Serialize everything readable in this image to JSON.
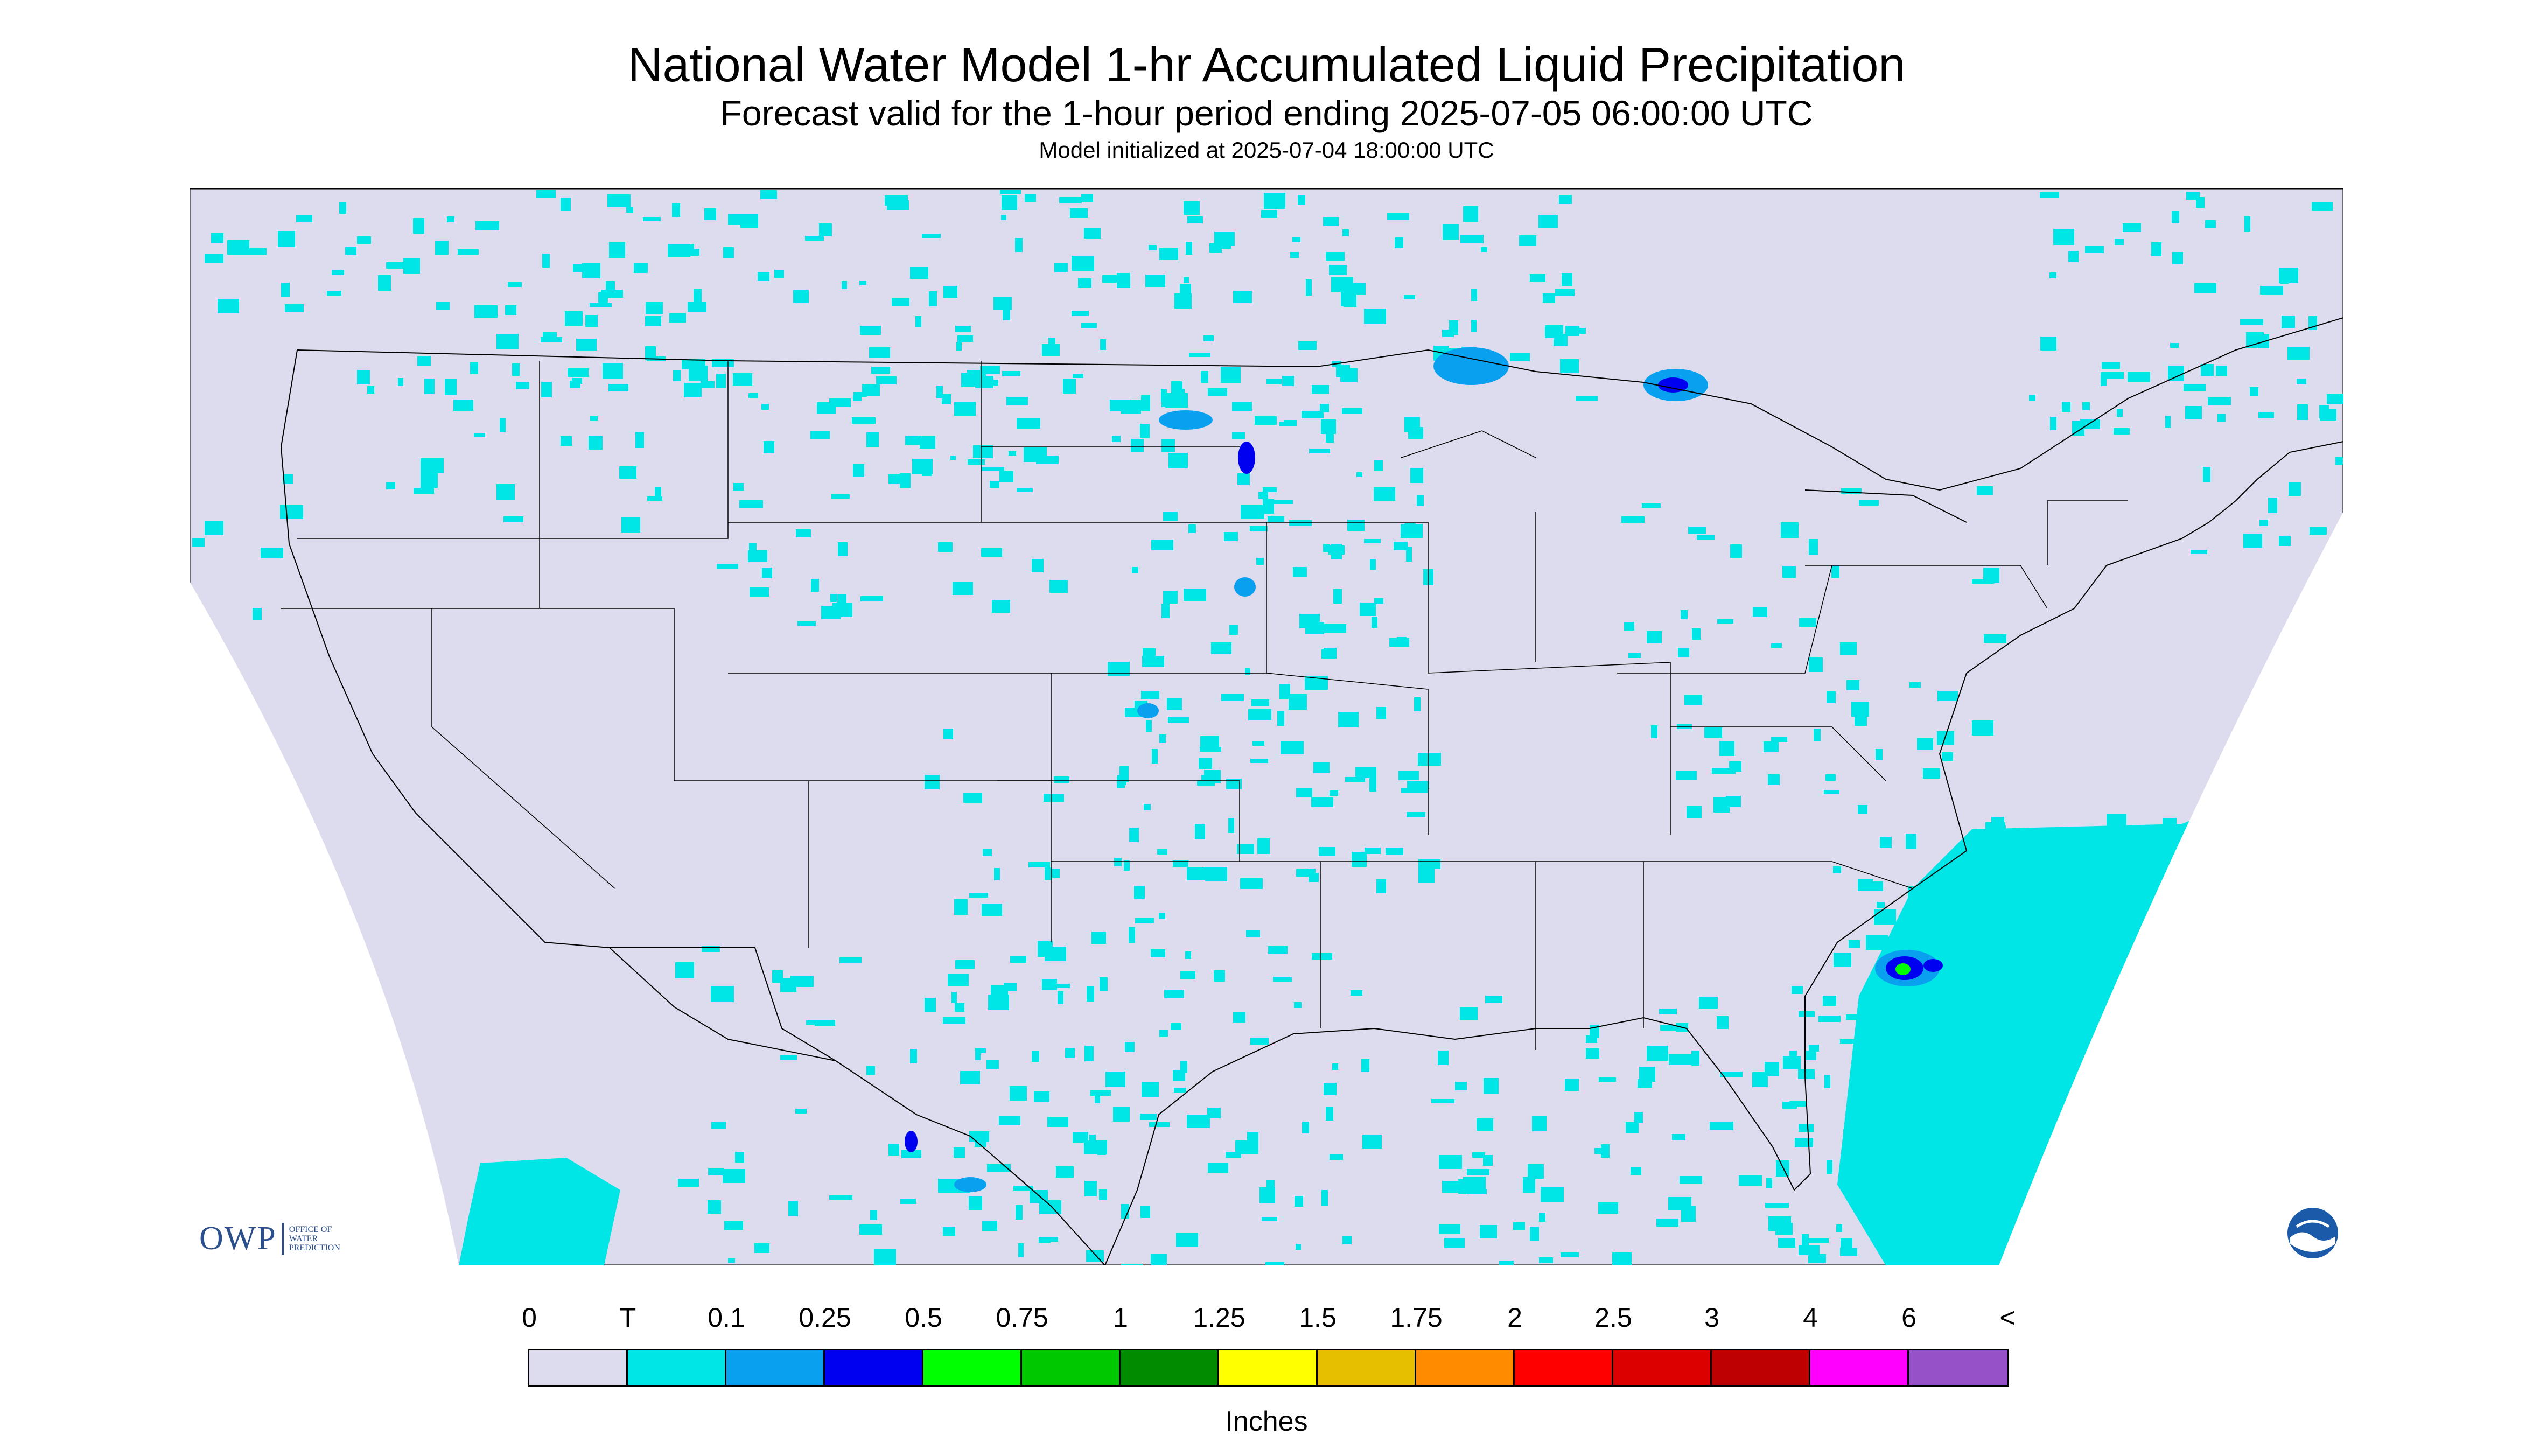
{
  "title": "National Water Model 1-hr Accumulated Liquid Precipitation",
  "subtitle": "Forecast valid for the 1-hour period ending 2025-07-05 06:00:00 UTC",
  "init_text": "Model initialized at 2025-07-04 18:00:00 UTC",
  "legend": {
    "labels": [
      "0",
      "T",
      "0.1",
      "0.25",
      "0.5",
      "0.75",
      "1",
      "1.25",
      "1.5",
      "1.75",
      "2",
      "2.5",
      "3",
      "4",
      "6",
      "<"
    ],
    "colors": [
      "#dcdcee",
      "#00e6e6",
      "#0aa0f0",
      "#0000f0",
      "#00ff00",
      "#00c800",
      "#008c00",
      "#ffff00",
      "#e6c000",
      "#ff8c00",
      "#ff0000",
      "#dc0000",
      "#be0000",
      "#ff00ff",
      "#9650c8"
    ],
    "units": "Inches"
  },
  "colors": {
    "no_data_background": "#dcdcee",
    "light_rain": "#00e6e6",
    "moderate": "#0aa0f0",
    "heavy": "#0000f0",
    "extreme": "#00ff00",
    "map_lines": "#000000"
  },
  "logos": {
    "owp_big": "OWP",
    "owp_small": [
      "OFFICE OF",
      "WATER",
      "PREDICTION"
    ],
    "noaa": "NOAA"
  }
}
